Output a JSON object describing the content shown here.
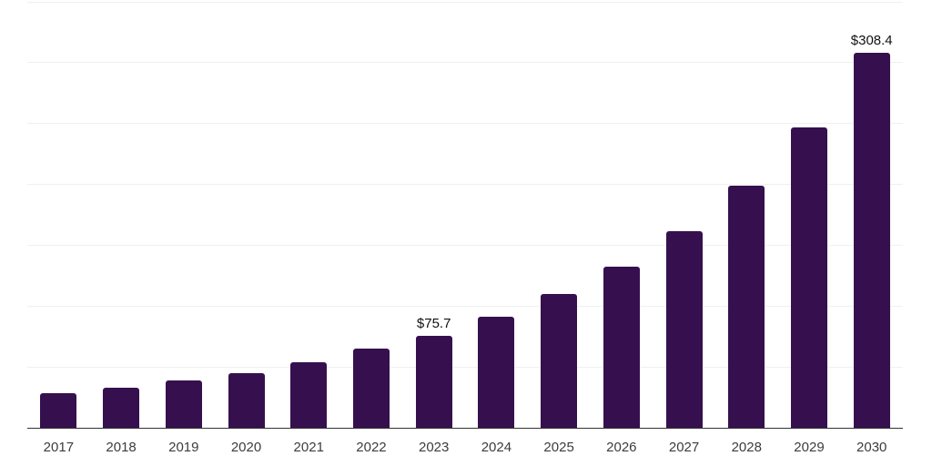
{
  "chart_data": {
    "type": "bar",
    "title": "",
    "xlabel": "",
    "ylabel": "",
    "categories": [
      "2017",
      "2018",
      "2019",
      "2020",
      "2021",
      "2022",
      "2023",
      "2024",
      "2025",
      "2026",
      "2027",
      "2028",
      "2029",
      "2030"
    ],
    "values": [
      28.3,
      33.0,
      39.2,
      44.9,
      53.6,
      64.8,
      75.7,
      91.2,
      110.2,
      132.6,
      161.6,
      199.3,
      246.5,
      308.4
    ],
    "point_labels": [
      "",
      "",
      "",
      "",
      "",
      "",
      "$75.7",
      "",
      "",
      "",
      "",
      "",
      "",
      "$308.4"
    ],
    "ylim": [
      0,
      350
    ],
    "gridline_step": 50,
    "grid": "horizontal",
    "legend_position": "none",
    "colors": {
      "bar": "#36104E",
      "axis_line": "#333333",
      "gridline": "#f0f0f0",
      "tick_label": "#3c3c3c",
      "data_label": "#111111",
      "background": "#ffffff"
    }
  }
}
